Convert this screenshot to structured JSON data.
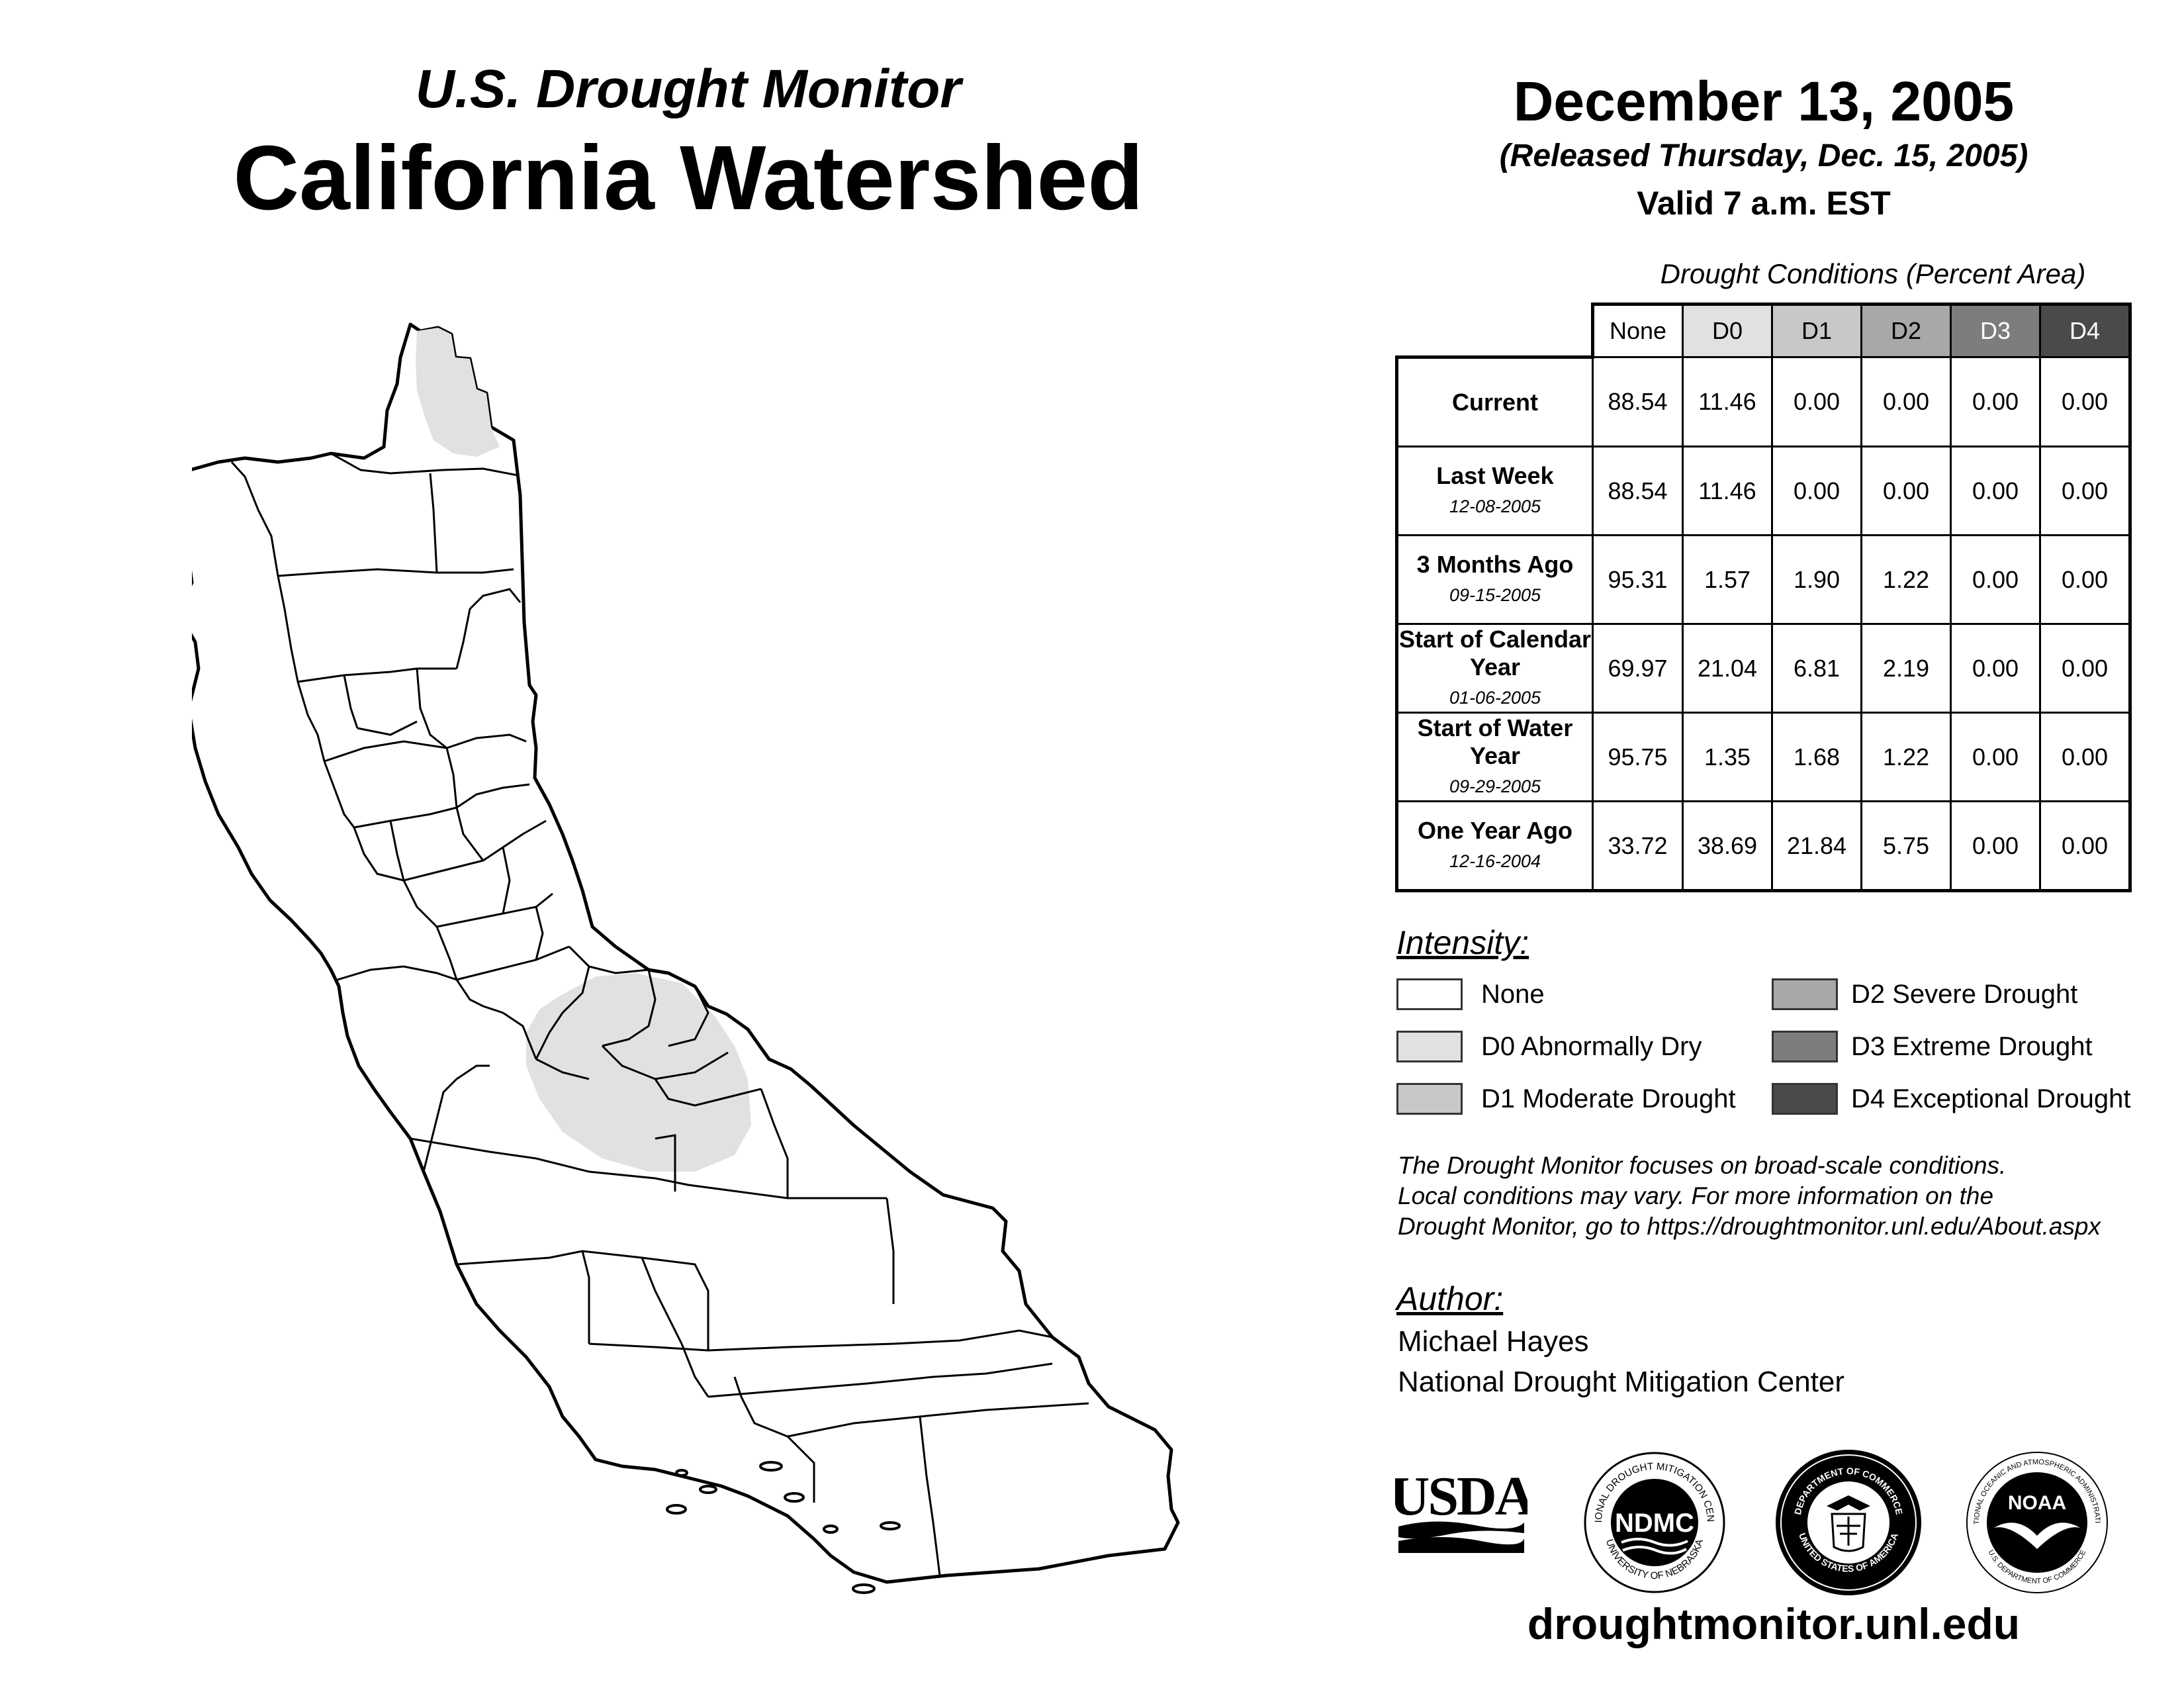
{
  "header": {
    "subtitle": "U.S. Drought Monitor",
    "title": "California Watershed",
    "date": "December 13, 2005",
    "released": "(Released Thursday, Dec. 15, 2005)",
    "valid": "Valid 7 a.m. EST"
  },
  "table": {
    "caption": "Drought Conditions (Percent Area)",
    "columns": [
      "None",
      "D0",
      "D1",
      "D2",
      "D3",
      "D4"
    ],
    "rows": [
      {
        "label": "Current",
        "sub": "",
        "values": [
          "88.54",
          "11.46",
          "0.00",
          "0.00",
          "0.00",
          "0.00"
        ]
      },
      {
        "label": "Last Week",
        "sub": "12-08-2005",
        "values": [
          "88.54",
          "11.46",
          "0.00",
          "0.00",
          "0.00",
          "0.00"
        ]
      },
      {
        "label": "3 Months Ago",
        "sub": "09-15-2005",
        "values": [
          "95.31",
          "1.57",
          "1.90",
          "1.22",
          "0.00",
          "0.00"
        ]
      },
      {
        "label": "Start of Calendar Year",
        "sub": "01-06-2005",
        "values": [
          "69.97",
          "21.04",
          "6.81",
          "2.19",
          "0.00",
          "0.00"
        ]
      },
      {
        "label": "Start of Water Year",
        "sub": "09-29-2005",
        "values": [
          "95.75",
          "1.35",
          "1.68",
          "1.22",
          "0.00",
          "0.00"
        ]
      },
      {
        "label": "One Year Ago",
        "sub": "12-16-2004",
        "values": [
          "33.72",
          "38.69",
          "21.84",
          "5.75",
          "0.00",
          "0.00"
        ]
      }
    ]
  },
  "legend": {
    "title": "Intensity:",
    "items": [
      {
        "label": "None",
        "color": "#ffffff"
      },
      {
        "label": "D0 Abnormally Dry",
        "color": "#e1e1e1"
      },
      {
        "label": "D1 Moderate Drought",
        "color": "#c8c8c8"
      },
      {
        "label": "D2 Severe Drought",
        "color": "#a8a8a8"
      },
      {
        "label": "D3 Extreme Drought",
        "color": "#7d7d7d"
      },
      {
        "label": "D4 Exceptional Drought",
        "color": "#4a4a4a"
      }
    ]
  },
  "note": {
    "line1": "The Drought Monitor focuses on broad-scale conditions.",
    "line2": "Local conditions may vary. For more information on the",
    "line3": "Drought Monitor, go to https://droughtmonitor.unl.edu/About.aspx"
  },
  "author": {
    "title": "Author:",
    "name": "Michael Hayes",
    "org": "National Drought Mitigation Center"
  },
  "logos": {
    "usda": "USDA",
    "ndmc": "NDMC",
    "ndmc_ring_top": "NATIONAL DROUGHT MITIGATION CENTER",
    "ndmc_ring_bottom": "UNIVERSITY OF NEBRASKA",
    "doc_ring_top": "DEPARTMENT OF COMMERCE",
    "doc_ring_bottom": "UNITED STATES OF AMERICA",
    "noaa": "NOAA",
    "noaa_ring_top": "NATIONAL OCEANIC AND ATMOSPHERIC ADMINISTRATION",
    "noaa_ring_bottom": "U.S. DEPARTMENT OF COMMERCE"
  },
  "footer": {
    "site": "droughtmonitor.unl.edu"
  },
  "map": {
    "region": "California Watershed",
    "drought_areas": [
      {
        "category": "D0",
        "location": "northeast corner"
      },
      {
        "category": "D0",
        "location": "southern San Joaquin Valley"
      }
    ],
    "colors": {
      "none": "#ffffff",
      "d0": "#e1e1e1",
      "outline": "#000000"
    }
  }
}
